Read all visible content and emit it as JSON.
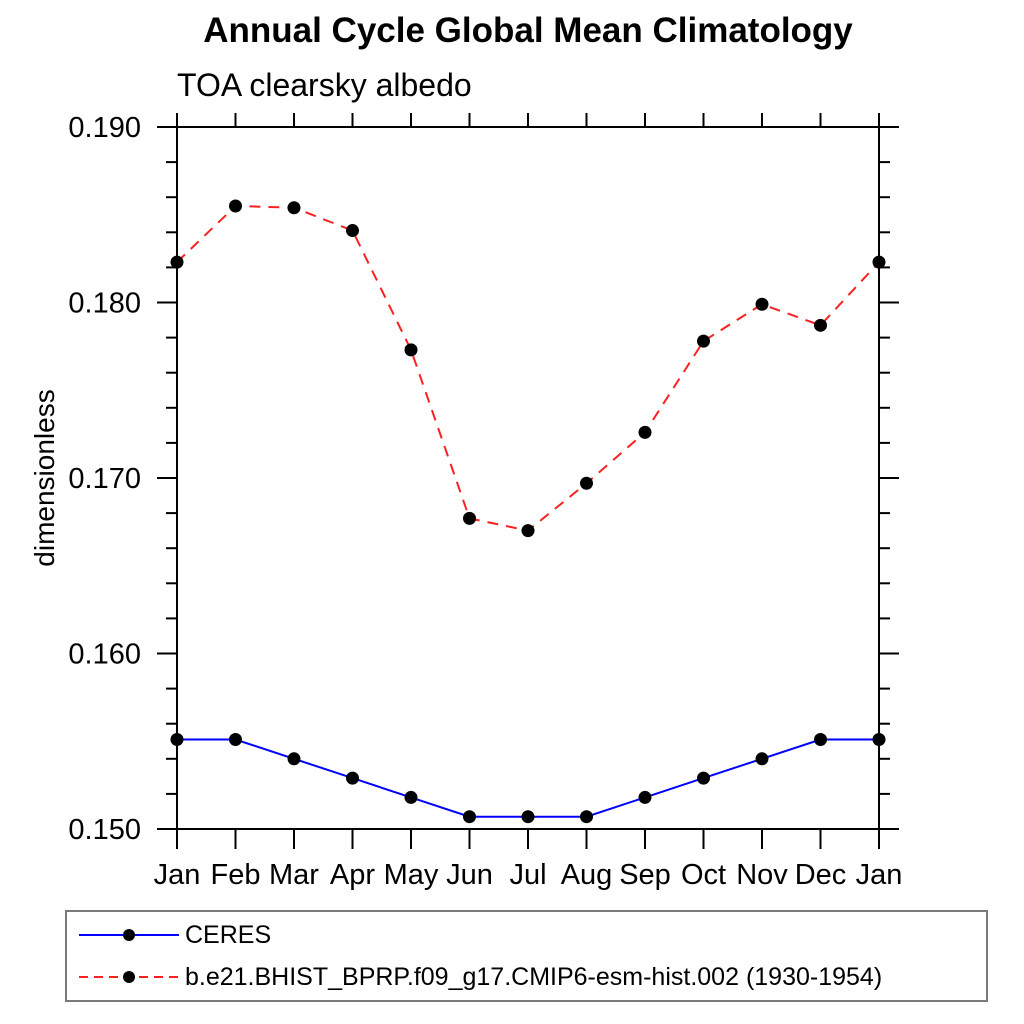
{
  "chart_data": {
    "type": "line",
    "title": "Annual Cycle Global Mean Climatology",
    "subtitle": "TOA clearsky albedo",
    "ylabel": "dimensionless",
    "xlabel": "",
    "x_categories": [
      "Jan",
      "Feb",
      "Mar",
      "Apr",
      "May",
      "Jun",
      "Jul",
      "Aug",
      "Sep",
      "Oct",
      "Nov",
      "Dec",
      "Jan"
    ],
    "ylim": [
      0.15,
      0.19
    ],
    "ytick_labels": [
      "0.150",
      "0.160",
      "0.170",
      "0.180",
      "0.190"
    ],
    "ytick_major_step": 0.01,
    "ytick_minor_step": 0.002,
    "grid": false,
    "background_color": "#ffffff",
    "axis_color": "#000000",
    "legend_position": "bottom-left-box",
    "series": [
      {
        "name": "CERES",
        "color": "#0000ff",
        "line_style": "solid",
        "marker": "filled-circle",
        "marker_color": "#000000",
        "values": [
          0.1551,
          0.1551,
          0.154,
          0.1529,
          0.1518,
          0.1507,
          0.1507,
          0.1507,
          0.1518,
          0.1529,
          0.154,
          0.1551,
          0.1551
        ]
      },
      {
        "name": "b.e21.BHIST_BPRP.f09_g17.CMIP6-esm-hist.002 (1930-1954)",
        "color": "#fb2121",
        "line_style": "dashed",
        "marker": "filled-circle",
        "marker_color": "#000000",
        "values": [
          0.1823,
          0.1855,
          0.1854,
          0.1841,
          0.1773,
          0.1677,
          0.167,
          0.1697,
          0.1726,
          0.1778,
          0.1799,
          0.1787,
          0.1823
        ]
      }
    ]
  }
}
